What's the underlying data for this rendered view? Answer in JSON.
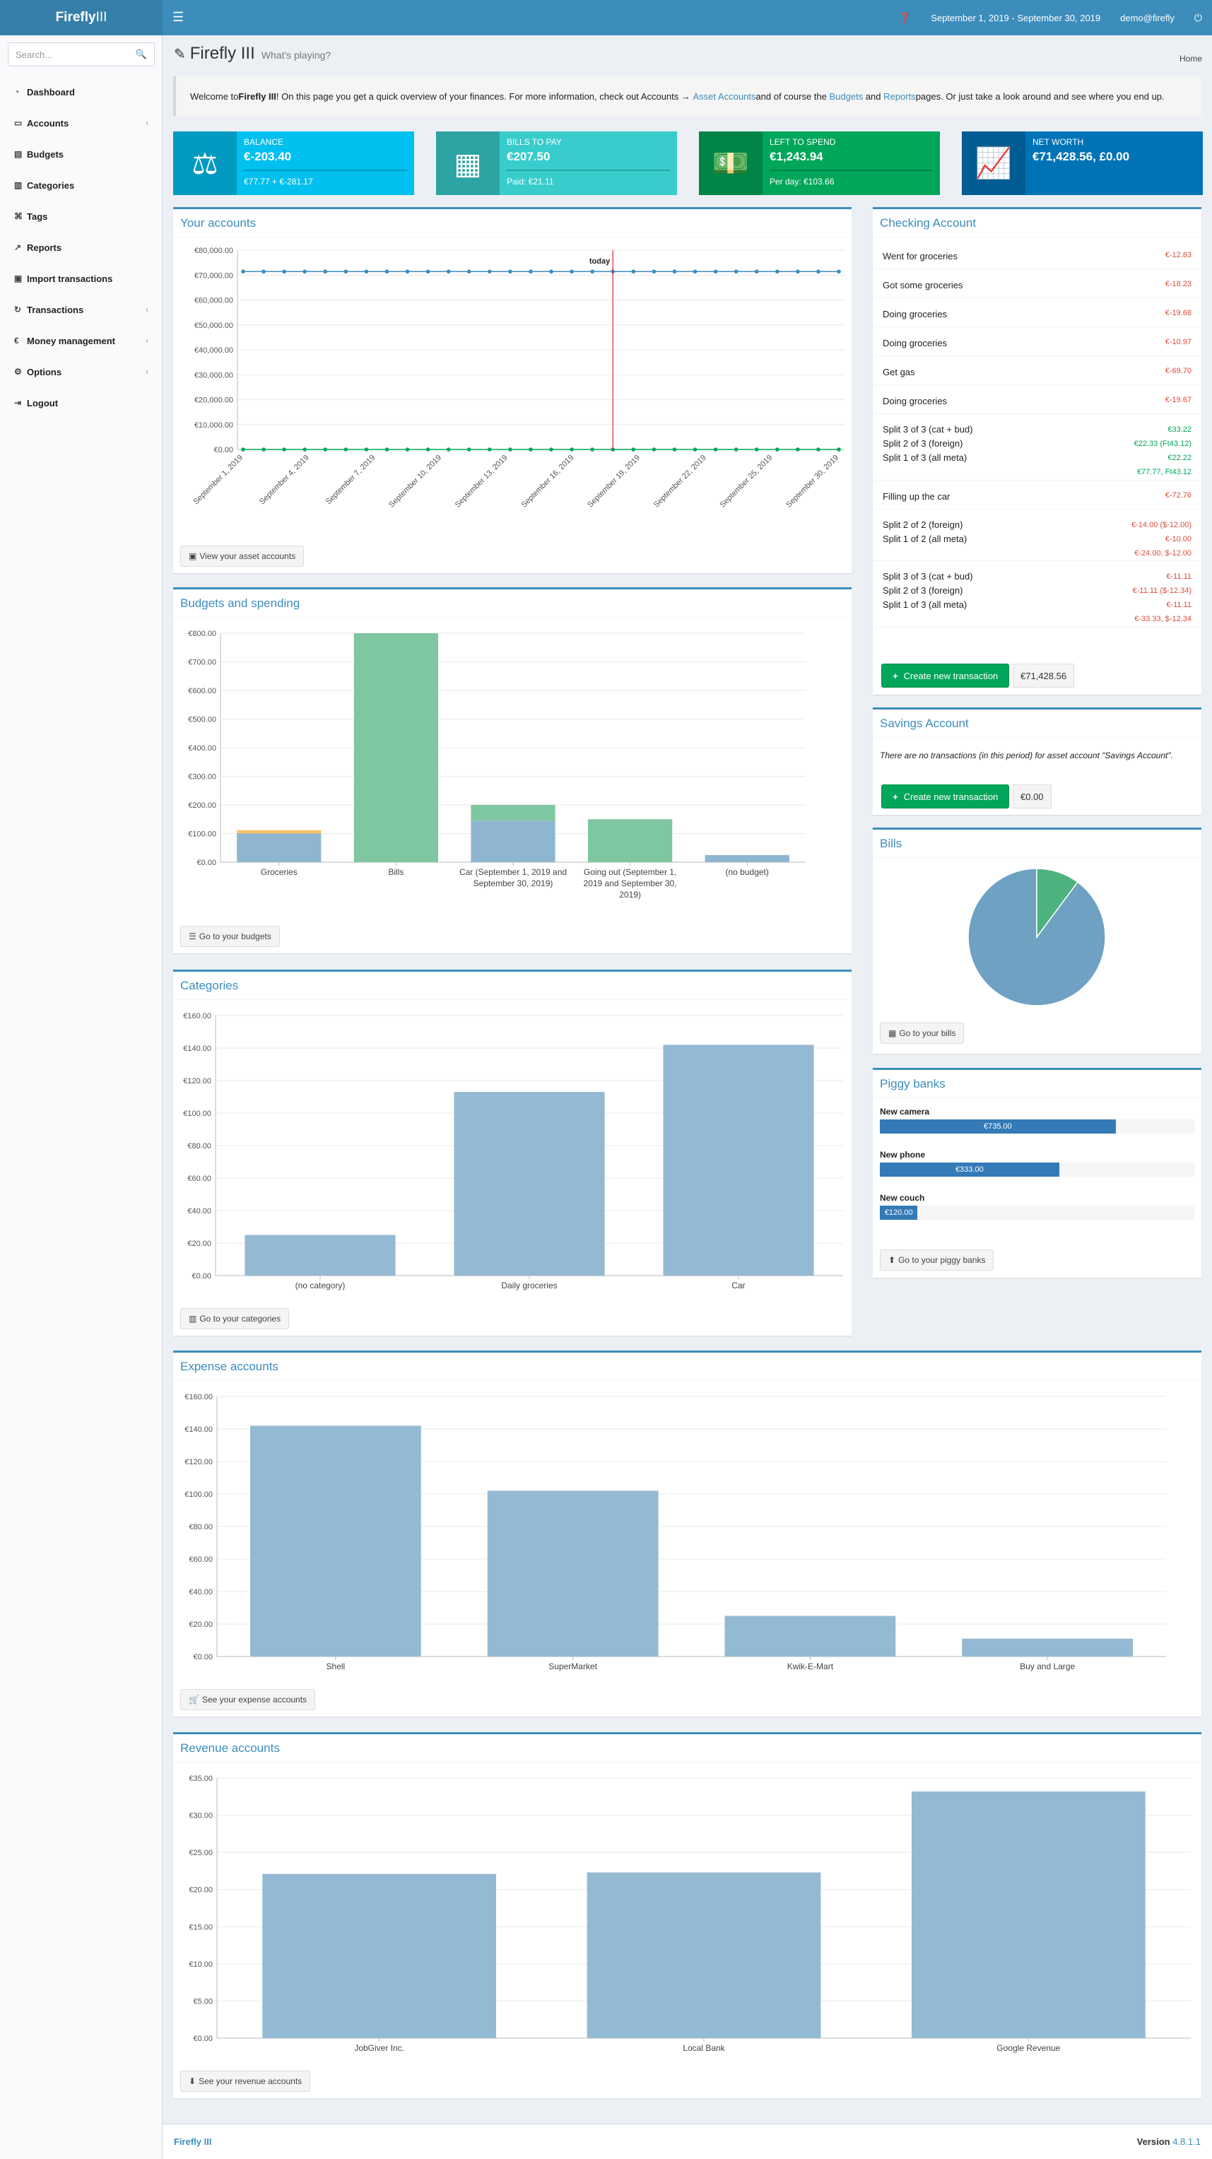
{
  "header": {
    "logo_bold": "Firefly",
    "logo_light": "III",
    "period": "September 1, 2019 - September 30, 2019",
    "user": "demo@firefly"
  },
  "search": {
    "placeholder": "Search..."
  },
  "sidebar": {
    "items": [
      {
        "label": "Dashboard",
        "icon": "dashboard-icon",
        "chev": false
      },
      {
        "label": "Accounts",
        "icon": "credit-card-icon",
        "chev": true
      },
      {
        "label": "Budgets",
        "icon": "budget-icon",
        "chev": false
      },
      {
        "label": "Categories",
        "icon": "bar-chart-icon",
        "chev": false
      },
      {
        "label": "Tags",
        "icon": "tags-icon",
        "chev": false
      },
      {
        "label": "Reports",
        "icon": "line-chart-icon",
        "chev": false
      },
      {
        "label": "Import transactions",
        "icon": "archive-icon",
        "chev": false
      },
      {
        "label": "Transactions",
        "icon": "repeat-icon",
        "chev": true
      },
      {
        "label": "Money management",
        "icon": "euro-icon",
        "chev": true
      },
      {
        "label": "Options",
        "icon": "cogs-icon",
        "chev": true
      },
      {
        "label": "Logout",
        "icon": "sign-out-icon",
        "chev": false
      }
    ]
  },
  "page": {
    "title": "Firefly III",
    "subtitle": "What's playing?",
    "breadcrumb": "Home"
  },
  "callout": {
    "p1": "Welcome to ",
    "brand": "Firefly III",
    "p2": "! On this page you get a quick overview of your finances. For more information, check out Accounts → ",
    "link1": "Asset Accounts",
    "p3": " and of course the ",
    "link2": "Budgets",
    "p4": " and ",
    "link3": "Reports",
    "p5": " pages. Or just take a look around and see where you end up."
  },
  "infoboxes": [
    {
      "label": "Balance",
      "value": "€-203.40",
      "sub": "€77.77 + €-281.17",
      "color": "#00c0ef"
    },
    {
      "label": "Bills to pay",
      "value": "€207.50",
      "sub": "Paid: €21.11",
      "color": "#39cccc"
    },
    {
      "label": "Left to spend",
      "value": "€1,243.94",
      "sub": "Per day: €103.66",
      "color": "#00a65a"
    },
    {
      "label": "Net worth",
      "value": "€71,428.56, £0.00",
      "sub": "",
      "color": "#0073b7"
    }
  ],
  "your_accounts": {
    "title": "Your accounts",
    "button": "View your asset accounts",
    "today_label": "today",
    "chart_data": {
      "type": "line",
      "yticks": [
        "€80,000.00",
        "€70,000.00",
        "€60,000.00",
        "€50,000.00",
        "€40,000.00",
        "€30,000.00",
        "€20,000.00",
        "€10,000.00",
        "€0.00"
      ],
      "ylim": [
        0,
        80000
      ],
      "xticks": [
        "September 1, 2019",
        "September 4, 2019",
        "September 7, 2019",
        "September 10, 2019",
        "September 13, 2019",
        "September 16, 2019",
        "September 19, 2019",
        "September 22, 2019",
        "September 25, 2019",
        "September 30, 2019"
      ],
      "series": [
        {
          "values": [
            71428.56,
            71428.56,
            71428.56,
            71428.56,
            71428.56,
            71428.56,
            71428.56,
            71428.56,
            71428.56,
            71428.56,
            71428.56,
            71428.56,
            71428.56,
            71428.56,
            71428.56,
            71428.56,
            71428.56,
            71428.56,
            71428.56,
            71428.56,
            71428.56,
            71428.56,
            71428.56,
            71428.56,
            71428.56,
            71428.56,
            71428.56,
            71428.56,
            71428.56,
            71428.56
          ],
          "color": "#3c8dbc"
        },
        {
          "values": [
            0,
            0,
            0,
            0,
            0,
            0,
            0,
            0,
            0,
            0,
            0,
            0,
            0,
            0,
            0,
            0,
            0,
            0,
            0,
            0,
            0,
            0,
            0,
            0,
            0,
            0,
            0,
            0,
            0,
            0
          ],
          "color": "#00a65a"
        }
      ],
      "today_index": 18
    }
  },
  "budgets": {
    "title": "Budgets and spending",
    "button": "Go to your budgets",
    "chart_data": {
      "type": "bar",
      "yticks": [
        "€800.00",
        "€700.00",
        "€600.00",
        "€500.00",
        "€400.00",
        "€300.00",
        "€200.00",
        "€100.00",
        "€0.00"
      ],
      "ylim": [
        0,
        800
      ],
      "categories": [
        "Groceries",
        "Bills",
        "Car (September 1, 2019 and September 30, 2019)",
        "Going out (September 1, 2019 and September 30, 2019)",
        "(no budget)"
      ],
      "series": [
        {
          "values": [
            100,
            0,
            145,
            0,
            25
          ],
          "color": "#8fb6d1"
        },
        {
          "values": [
            0,
            800,
            55,
            150,
            0
          ],
          "color": "#7ec7a0"
        },
        {
          "values": [
            12,
            0,
            0,
            0,
            0
          ],
          "color": "#f5c06d"
        }
      ]
    }
  },
  "categories": {
    "title": "Categories",
    "button": "Go to your categories",
    "chart_data": {
      "type": "bar",
      "yticks": [
        "€160.00",
        "€140.00",
        "€120.00",
        "€100.00",
        "€80.00",
        "€60.00",
        "€40.00",
        "€20.00",
        "€0.00"
      ],
      "ylim": [
        0,
        160
      ],
      "categories": [
        "(no category)",
        "Daily groceries",
        "Car"
      ],
      "values": [
        25,
        113,
        142
      ]
    }
  },
  "expense": {
    "title": "Expense accounts",
    "button": "See your expense accounts",
    "chart_data": {
      "type": "bar",
      "yticks": [
        "€160.00",
        "€140.00",
        "€120.00",
        "€100.00",
        "€80.00",
        "€60.00",
        "€40.00",
        "€20.00",
        "€0.00"
      ],
      "ylim": [
        0,
        160
      ],
      "categories": [
        "Shell",
        "SuperMarket",
        "Kwik-E-Mart",
        "Buy and Large"
      ],
      "values": [
        142,
        102,
        25,
        11
      ]
    }
  },
  "revenue": {
    "title": "Revenue accounts",
    "button": "See your revenue accounts",
    "chart_data": {
      "type": "bar",
      "yticks": [
        "€35.00",
        "€30.00",
        "€25.00",
        "€20.00",
        "€15.00",
        "€10.00",
        "€5.00",
        "€0.00"
      ],
      "ylim": [
        0,
        35
      ],
      "categories": [
        "JobGiver Inc.",
        "Local Bank",
        "Google Revenue"
      ],
      "values": [
        22.1,
        22.3,
        33.2
      ]
    }
  },
  "checking": {
    "title": "Checking Account",
    "button": "Create new transaction",
    "balance": "€71,428.56",
    "rows": [
      {
        "names": [
          "Went for groceries"
        ],
        "amounts": [
          {
            "v": "€-12.83",
            "c": "neg"
          }
        ]
      },
      {
        "names": [
          "Got some groceries"
        ],
        "amounts": [
          {
            "v": "€-18.23",
            "c": "neg"
          }
        ]
      },
      {
        "names": [
          "Doing groceries"
        ],
        "amounts": [
          {
            "v": "€-19.68",
            "c": "neg"
          }
        ]
      },
      {
        "names": [
          "Doing groceries"
        ],
        "amounts": [
          {
            "v": "€-10.97",
            "c": "neg"
          }
        ]
      },
      {
        "names": [
          "Get gas"
        ],
        "amounts": [
          {
            "v": "€-69.70",
            "c": "neg"
          }
        ]
      },
      {
        "names": [
          "Doing groceries"
        ],
        "amounts": [
          {
            "v": "€-19.67",
            "c": "neg"
          }
        ]
      },
      {
        "names": [
          "Split 3 of 3 (cat + bud)",
          "Split 2 of 3 (foreign)",
          "Split 1 of 3 (all meta)"
        ],
        "amounts": [
          {
            "v": "€33.22",
            "c": "pos"
          },
          {
            "v": "€22.33 (Ft43.12)",
            "c": "pos"
          },
          {
            "v": "€22.22",
            "c": "pos"
          },
          {
            "v": "€77.77, Ft43.12",
            "c": "pos"
          }
        ]
      },
      {
        "names": [
          "Filling up the car"
        ],
        "amounts": [
          {
            "v": "€-72.76",
            "c": "neg"
          }
        ]
      },
      {
        "names": [
          "Split 2 of 2 (foreign)",
          "Split 1 of 2 (all meta)"
        ],
        "amounts": [
          {
            "v": "€-14.00 ($-12.00)",
            "c": "neg"
          },
          {
            "v": "€-10.00",
            "c": "neg"
          },
          {
            "v": "€-24.00, $-12.00",
            "c": "neg"
          }
        ]
      },
      {
        "names": [
          "Split 3 of 3 (cat + bud)",
          "Split 2 of 3 (foreign)",
          "Split 1 of 3 (all meta)"
        ],
        "amounts": [
          {
            "v": "€-11.11",
            "c": "neg"
          },
          {
            "v": "€-11.11 ($-12.34)",
            "c": "neg"
          },
          {
            "v": "€-11.11",
            "c": "neg"
          },
          {
            "v": "€-33.33, $-12.34",
            "c": "neg"
          }
        ]
      }
    ]
  },
  "savings": {
    "title": "Savings Account",
    "message": "There are no transactions (in this period) for asset account \"Savings Account\".",
    "button": "Create new transaction",
    "balance": "€0.00"
  },
  "bills": {
    "title": "Bills",
    "button": "Go to your bills",
    "chart_data": {
      "type": "pie",
      "values": [
        186.39,
        21.11
      ],
      "colors": [
        "#6ea1c2",
        "#4db37e"
      ]
    }
  },
  "piggy": {
    "title": "Piggy banks",
    "button": "Go to your piggy banks",
    "items": [
      {
        "name": "New camera",
        "label": "€735.00",
        "pct": 75
      },
      {
        "name": "New phone",
        "label": "€333.00",
        "pct": 57
      },
      {
        "name": "New couch",
        "label": "€120.00",
        "pct": 12
      }
    ]
  },
  "footer": {
    "brand": "Firefly III",
    "version_label": "Version",
    "version": "4.8.1.1"
  }
}
